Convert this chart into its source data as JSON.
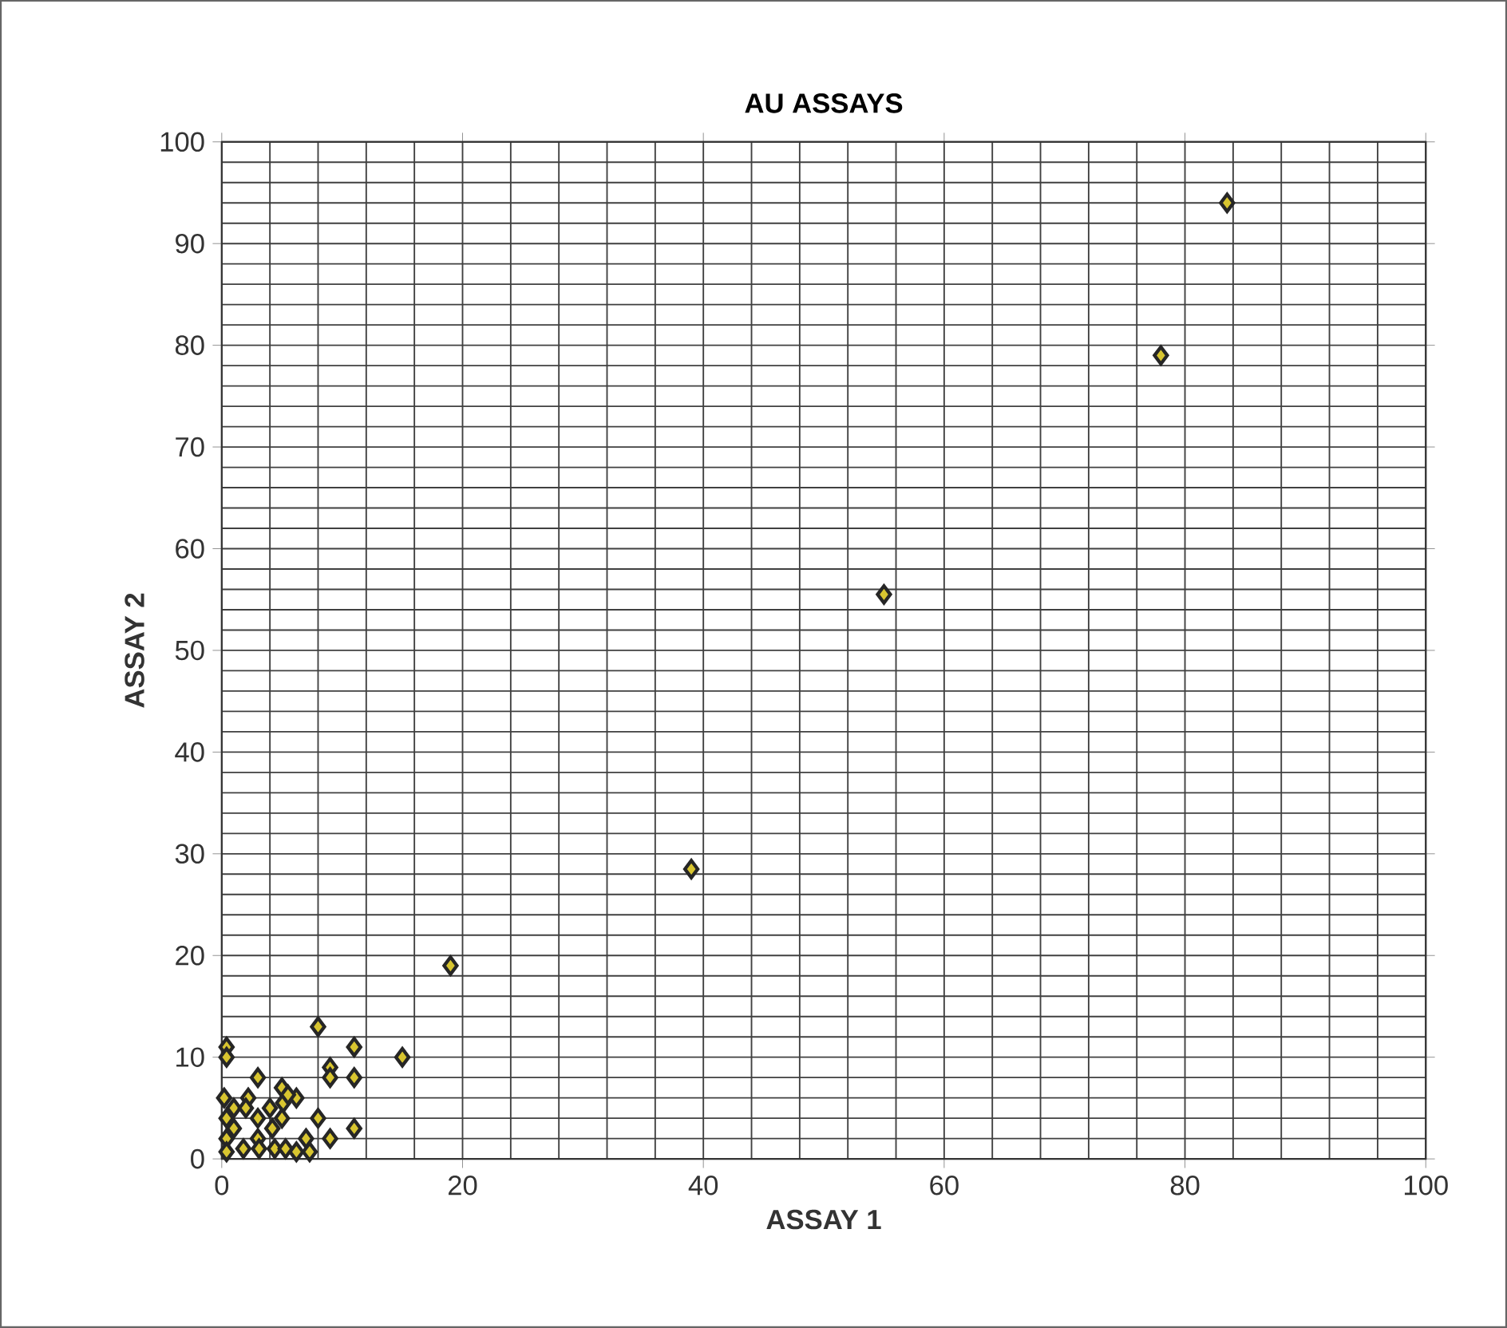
{
  "chart_data": {
    "type": "scatter",
    "title": "AU ASSAYS",
    "xlabel": "ASSAY 1",
    "ylabel": "ASSAY 2",
    "x": [
      8,
      0.4,
      0.4,
      11,
      15,
      9,
      9,
      11,
      3,
      5,
      0.2,
      2.2,
      1,
      2,
      4,
      5.1,
      6.2,
      8,
      3,
      5,
      0.4,
      11,
      9,
      7,
      1,
      0.4,
      3,
      4.2,
      4.4,
      3.1,
      1.8,
      0.4,
      6.2,
      7.3,
      5.3,
      19,
      39,
      55,
      78,
      83.5,
      5.5
    ],
    "values": [
      13,
      11,
      10,
      11,
      10,
      9,
      8,
      8,
      8,
      7,
      6,
      6,
      5,
      5,
      5,
      5.5,
      6,
      4,
      4,
      4,
      4,
      3,
      2,
      2,
      3,
      2,
      2,
      3,
      1,
      1,
      1,
      0.7,
      0.7,
      0.7,
      1,
      19,
      28.5,
      55.5,
      79,
      94,
      6.3
    ],
    "color": "#d8c530",
    "marker": "diamond",
    "grid": true,
    "xlim": [
      0,
      100
    ],
    "ylim": [
      0,
      100
    ],
    "xticks": [
      0,
      20,
      40,
      60,
      80,
      100
    ],
    "yticks": [
      0,
      10,
      20,
      30,
      40,
      50,
      60,
      70,
      80,
      90,
      100
    ]
  }
}
